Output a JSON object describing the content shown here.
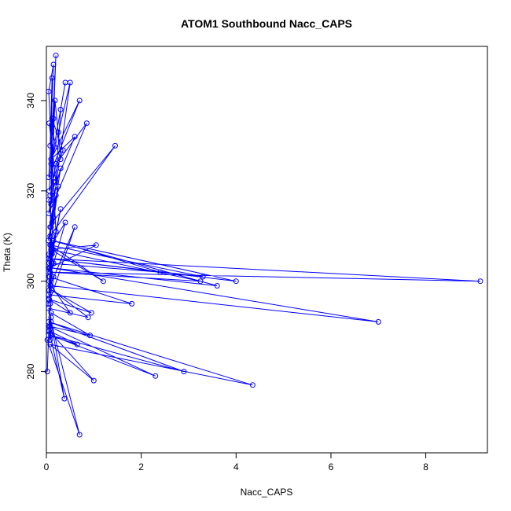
{
  "chart_data": {
    "type": "line",
    "title": "ATOM1 Southbound Nacc_CAPS",
    "xlabel": "Nacc_CAPS",
    "ylabel": "Theta (K)",
    "xlim": [
      0,
      9.3
    ],
    "ylim": [
      262,
      352
    ],
    "xticks": [
      0,
      2,
      4,
      6,
      8
    ],
    "yticks": [
      280,
      300,
      320,
      340
    ],
    "grid": false,
    "colors": {
      "series": "#0000ff",
      "axis": "#000000"
    },
    "marker": "open-circle",
    "series": [
      {
        "x": [
          0.02,
          0.05,
          0.08,
          0.1,
          0.12,
          0.2,
          0.05,
          0.15,
          0.08,
          0.12,
          0.1,
          0.18,
          0.25,
          0.3,
          0.06,
          0.2,
          0.3,
          0.4,
          0.1,
          0.5,
          0.08,
          0.15,
          0.2,
          0.06,
          0.35,
          0.12,
          0.05,
          0.7,
          0.1,
          0.6,
          0.08,
          0.2,
          0.85,
          0.05,
          0.15,
          0.1,
          0.3,
          0.08,
          1.45,
          0.12,
          0.05,
          0.25,
          0.06,
          0.1,
          0.2,
          0.04,
          0.15,
          0.08,
          0.3,
          0.05,
          0.12,
          0.07,
          0.4,
          0.1,
          0.05,
          0.08,
          0.2,
          0.06,
          0.15,
          0.1,
          0.05,
          0.12,
          0.08,
          0.6,
          0.05,
          0.1,
          1.05,
          0.08,
          0.15,
          0.06,
          0.12,
          0.05,
          0.08,
          3.25,
          0.1,
          0.06,
          2.4,
          0.15,
          0.05,
          3.3,
          0.08,
          1.2,
          0.1,
          0.06,
          3.6,
          0.12,
          4.0,
          0.05,
          9.15,
          0.08,
          0.1,
          0.15,
          0.06,
          1.8,
          0.05,
          0.08,
          7.0,
          0.1,
          0.5,
          0.06,
          0.95,
          0.12,
          0.88,
          0.05,
          0.08,
          0.92,
          0.1,
          0.06,
          0.65,
          0.05,
          0.1,
          0.08,
          0.06,
          2.3,
          0.1,
          2.9,
          0.05,
          4.35,
          0.08,
          1.0,
          0.06,
          0.38,
          0.1,
          0.7,
          0.02
        ],
        "y": [
          280,
          289,
          295,
          300,
          307,
          311,
          342,
          348,
          330,
          345,
          318,
          340,
          333,
          327,
          335,
          322,
          338,
          344,
          326,
          344,
          312,
          336,
          350,
          320,
          329,
          336,
          323,
          340,
          327,
          332,
          319,
          326,
          335,
          315,
          322,
          317,
          325,
          310,
          330,
          313,
          318,
          321,
          306,
          312,
          319,
          309,
          314,
          305,
          316,
          302,
          310,
          301,
          313,
          308,
          297,
          303,
          311,
          300,
          307,
          304,
          296,
          306,
          299,
          312,
          295,
          307,
          308,
          303,
          301,
          298,
          304,
          296,
          302,
          300,
          307,
          304,
          302,
          309,
          305,
          301,
          308,
          300,
          307,
          303,
          299,
          309,
          300,
          305,
          300,
          302,
          306,
          304,
          301,
          295,
          297,
          303,
          291,
          299,
          293,
          296,
          293,
          298,
          292,
          294,
          290,
          288,
          293,
          289,
          286,
          288,
          292,
          287,
          290,
          279,
          288,
          280,
          291,
          277,
          286,
          278,
          289,
          274,
          291,
          266,
          287
        ]
      }
    ]
  }
}
